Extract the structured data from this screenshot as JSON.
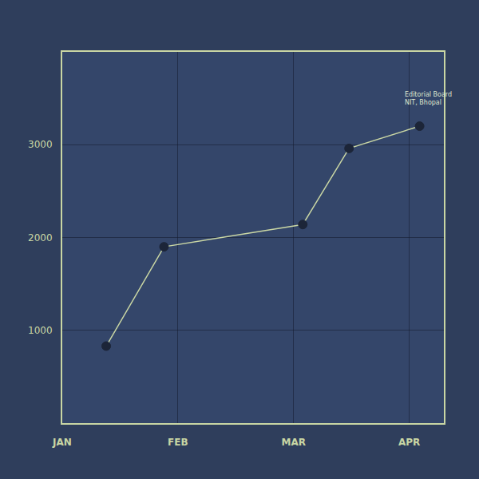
{
  "chart_data": {
    "type": "line",
    "x": [
      0.38,
      0.88,
      2.08,
      2.48,
      3.09
    ],
    "values": [
      830,
      1900,
      2140,
      2960,
      3200
    ],
    "color": "#c9d6a4",
    "marker": "circle",
    "xlim": [
      0,
      3.3
    ],
    "xticks": [
      {
        "value": 0,
        "label": "JAN"
      },
      {
        "value": 1,
        "label": "FEB"
      },
      {
        "value": 2,
        "label": "MAR"
      },
      {
        "value": 3,
        "label": "APR"
      }
    ],
    "ylim": [
      0,
      4000
    ],
    "yticks": [
      1000,
      2000,
      3000
    ],
    "grid": true,
    "annotations": [
      "Editorial Board",
      "NIT, Bhopal"
    ]
  }
}
